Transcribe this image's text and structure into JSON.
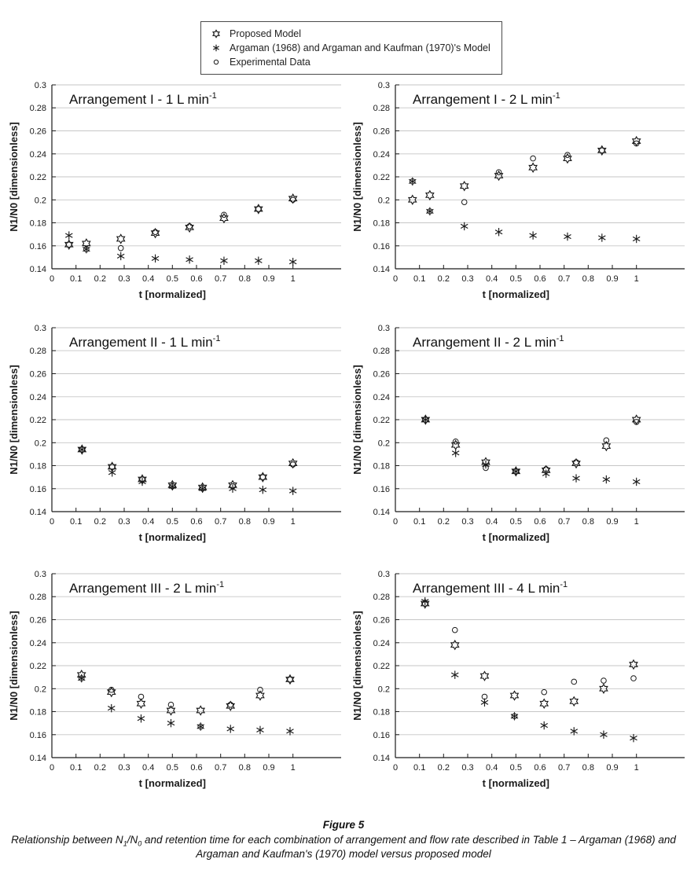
{
  "colors": {
    "marker": "#1a1a1a",
    "grid": "#c6c6c6",
    "axis": "#1a1a1a",
    "text": "#1a1a1a",
    "legend_border": "#4a4a4a"
  },
  "legend": {
    "items": [
      {
        "marker": "hexagram",
        "label": "Proposed Model"
      },
      {
        "marker": "asterisk",
        "label": "Argaman (1968) and Argaman and Kaufman (1970)'s Model"
      },
      {
        "marker": "circle",
        "label": "Experimental Data"
      }
    ]
  },
  "chart_data": [
    {
      "type": "scatter",
      "title": "Arrangement I - 1 L min",
      "title_sup": "-1",
      "xlabel": "t [normalized]",
      "ylabel": "N1/N0 [dimensionless]",
      "xlim": [
        0,
        1.2
      ],
      "ylim": [
        0.14,
        0.3
      ],
      "xticks": [
        0,
        0.1,
        0.2,
        0.3,
        0.4,
        0.5,
        0.6,
        0.7,
        0.8,
        0.9,
        1
      ],
      "yticks": [
        0.14,
        0.16,
        0.18,
        0.2,
        0.22,
        0.24,
        0.26,
        0.28,
        0.3
      ],
      "grid": "horizontal",
      "x": [
        0.071,
        0.143,
        0.286,
        0.429,
        0.571,
        0.714,
        0.857,
        1.0
      ],
      "series": [
        {
          "name": "Proposed Model",
          "marker": "hexagram",
          "values": [
            0.161,
            0.162,
            0.166,
            0.171,
            0.176,
            0.184,
            0.192,
            0.201
          ]
        },
        {
          "name": "Argaman (1968) and Argaman and Kaufman (1970)'s Model",
          "marker": "asterisk",
          "values": [
            0.169,
            0.157,
            0.151,
            0.149,
            0.148,
            0.147,
            0.147,
            0.146
          ]
        },
        {
          "name": "Experimental Data",
          "marker": "circle",
          "values": [
            0.161,
            0.157,
            0.158,
            0.172,
            0.177,
            0.187,
            0.192,
            0.2
          ]
        }
      ]
    },
    {
      "type": "scatter",
      "title": "Arrangement I - 2 L min",
      "title_sup": "-1",
      "xlabel": "t [normalized]",
      "ylabel": "N1/N0 [dimensionless]",
      "xlim": [
        0,
        1.2
      ],
      "ylim": [
        0.14,
        0.3
      ],
      "xticks": [
        0,
        0.1,
        0.2,
        0.3,
        0.4,
        0.5,
        0.6,
        0.7,
        0.8,
        0.9,
        1
      ],
      "yticks": [
        0.14,
        0.16,
        0.18,
        0.2,
        0.22,
        0.24,
        0.26,
        0.28,
        0.3
      ],
      "grid": "horizontal",
      "x": [
        0.071,
        0.143,
        0.286,
        0.429,
        0.571,
        0.714,
        0.857,
        1.0
      ],
      "series": [
        {
          "name": "Proposed Model",
          "marker": "hexagram",
          "values": [
            0.2,
            0.204,
            0.212,
            0.221,
            0.228,
            0.236,
            0.243,
            0.251
          ]
        },
        {
          "name": "Argaman (1968) and Argaman and Kaufman (1970)'s Model",
          "marker": "asterisk",
          "values": [
            0.216,
            0.19,
            0.177,
            0.172,
            0.169,
            0.168,
            0.167,
            0.166
          ]
        },
        {
          "name": "Experimental Data",
          "marker": "circle",
          "values": [
            0.216,
            0.19,
            0.198,
            0.224,
            0.236,
            0.239,
            0.243,
            0.249
          ]
        }
      ]
    },
    {
      "type": "scatter",
      "title": "Arrangement II - 1 L min",
      "title_sup": "-1",
      "xlabel": "t [normalized]",
      "ylabel": "N1/N0 [dimensionless]",
      "xlim": [
        0,
        1.2
      ],
      "ylim": [
        0.14,
        0.3
      ],
      "xticks": [
        0,
        0.1,
        0.2,
        0.3,
        0.4,
        0.5,
        0.6,
        0.7,
        0.8,
        0.9,
        1
      ],
      "yticks": [
        0.14,
        0.16,
        0.18,
        0.2,
        0.22,
        0.24,
        0.26,
        0.28,
        0.3
      ],
      "grid": "horizontal",
      "x": [
        0.125,
        0.25,
        0.375,
        0.5,
        0.625,
        0.75,
        0.875,
        1.0
      ],
      "series": [
        {
          "name": "Proposed Model",
          "marker": "hexagram",
          "values": [
            0.194,
            0.179,
            0.168,
            0.163,
            0.161,
            0.163,
            0.17,
            0.182
          ]
        },
        {
          "name": "Argaman (1968) and Argaman and Kaufman (1970)'s Model",
          "marker": "asterisk",
          "values": [
            0.194,
            0.174,
            0.166,
            0.162,
            0.16,
            0.16,
            0.159,
            0.158
          ]
        },
        {
          "name": "Experimental Data",
          "marker": "circle",
          "values": [
            0.194,
            0.179,
            0.168,
            0.162,
            0.16,
            0.162,
            0.17,
            0.181
          ]
        }
      ]
    },
    {
      "type": "scatter",
      "title": "Arrangement II - 2 L min",
      "title_sup": "-1",
      "xlabel": "t [normalized]",
      "ylabel": "N1/N0 [dimensionless]",
      "xlim": [
        0,
        1.2
      ],
      "ylim": [
        0.14,
        0.3
      ],
      "xticks": [
        0,
        0.1,
        0.2,
        0.3,
        0.4,
        0.5,
        0.6,
        0.7,
        0.8,
        0.9,
        1
      ],
      "yticks": [
        0.14,
        0.16,
        0.18,
        0.2,
        0.22,
        0.24,
        0.26,
        0.28,
        0.3
      ],
      "grid": "horizontal",
      "x": [
        0.125,
        0.25,
        0.375,
        0.5,
        0.625,
        0.75,
        0.875,
        1.0
      ],
      "series": [
        {
          "name": "Proposed Model",
          "marker": "hexagram",
          "values": [
            0.22,
            0.198,
            0.183,
            0.175,
            0.176,
            0.182,
            0.197,
            0.22
          ]
        },
        {
          "name": "Argaman (1968) and Argaman and Kaufman (1970)'s Model",
          "marker": "asterisk",
          "values": [
            0.22,
            0.191,
            0.181,
            0.175,
            0.173,
            0.169,
            0.168,
            0.166
          ]
        },
        {
          "name": "Experimental Data",
          "marker": "circle",
          "values": [
            0.22,
            0.201,
            0.178,
            0.175,
            0.177,
            0.183,
            0.202,
            0.218
          ]
        }
      ]
    },
    {
      "type": "scatter",
      "title": "Arrangement III - 2 L min",
      "title_sup": "-1",
      "xlabel": "t [normalized]",
      "ylabel": "N1/N0 [dimensionless]",
      "xlim": [
        0,
        1.2
      ],
      "ylim": [
        0.14,
        0.3
      ],
      "xticks": [
        0,
        0.1,
        0.2,
        0.3,
        0.4,
        0.5,
        0.6,
        0.7,
        0.8,
        0.9,
        1
      ],
      "yticks": [
        0.14,
        0.16,
        0.18,
        0.2,
        0.22,
        0.24,
        0.26,
        0.28,
        0.3
      ],
      "grid": "horizontal",
      "x": [
        0.123,
        0.247,
        0.37,
        0.494,
        0.617,
        0.741,
        0.864,
        0.988
      ],
      "series": [
        {
          "name": "Proposed Model",
          "marker": "hexagram",
          "values": [
            0.212,
            0.197,
            0.187,
            0.181,
            0.181,
            0.185,
            0.194,
            0.208
          ]
        },
        {
          "name": "Argaman (1968) and Argaman and Kaufman (1970)'s Model",
          "marker": "asterisk",
          "values": [
            0.209,
            0.183,
            0.174,
            0.17,
            0.167,
            0.165,
            0.164,
            0.163
          ]
        },
        {
          "name": "Experimental Data",
          "marker": "circle",
          "values": [
            0.209,
            0.199,
            0.193,
            0.186,
            0.167,
            0.186,
            0.199,
            0.208
          ]
        }
      ]
    },
    {
      "type": "scatter",
      "title": "Arrangement III - 4 L min",
      "title_sup": "-1",
      "xlabel": "t [normalized]",
      "ylabel": "N1/N0 [dimensionless]",
      "xlim": [
        0,
        1.2
      ],
      "ylim": [
        0.14,
        0.3
      ],
      "xticks": [
        0,
        0.1,
        0.2,
        0.3,
        0.4,
        0.5,
        0.6,
        0.7,
        0.8,
        0.9,
        1
      ],
      "yticks": [
        0.14,
        0.16,
        0.18,
        0.2,
        0.22,
        0.24,
        0.26,
        0.28,
        0.3
      ],
      "grid": "horizontal",
      "x": [
        0.123,
        0.247,
        0.37,
        0.494,
        0.617,
        0.741,
        0.864,
        0.988
      ],
      "series": [
        {
          "name": "Proposed Model",
          "marker": "hexagram",
          "values": [
            0.274,
            0.238,
            0.211,
            0.194,
            0.187,
            0.189,
            0.2,
            0.221
          ]
        },
        {
          "name": "Argaman (1968) and Argaman and Kaufman (1970)'s Model",
          "marker": "asterisk",
          "values": [
            0.276,
            0.212,
            0.188,
            0.176,
            0.168,
            0.163,
            0.16,
            0.157
          ]
        },
        {
          "name": "Experimental Data",
          "marker": "circle",
          "values": [
            0.274,
            0.251,
            0.193,
            0.176,
            0.197,
            0.206,
            0.207,
            0.209
          ]
        }
      ]
    }
  ],
  "caption": {
    "figure_label": "Figure 5",
    "segments": [
      {
        "text": "Relationship between N"
      },
      {
        "text": "1",
        "sub": true
      },
      {
        "text": "/N"
      },
      {
        "text": "0",
        "sub": true
      },
      {
        "text": " and retention time for each combination of arrangement and flow rate described in Table 1 – Argaman (1968) and Argaman and Kaufman's (1970) model versus proposed model"
      }
    ]
  }
}
